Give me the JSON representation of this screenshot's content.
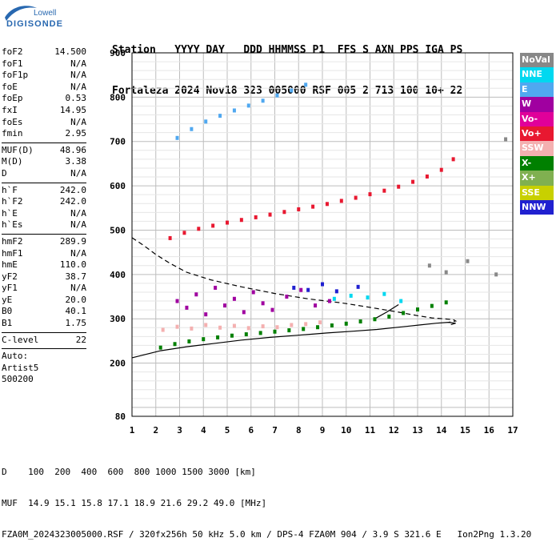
{
  "logo": {
    "line1": "Lowell",
    "line2": "DIGISONDE"
  },
  "header": {
    "labels": "Station   YYYY DAY   DDD HHMMSS P1  FFS S AXN PPS IGA PS",
    "values": "Fortaleza 2024 Nov18 323 005000 RSF 005 2 713 100 10+ 22"
  },
  "params": {
    "group1": [
      {
        "label": "foF2",
        "value": "14.500"
      },
      {
        "label": "foF1",
        "value": "N/A"
      },
      {
        "label": "foF1p",
        "value": "N/A"
      },
      {
        "label": "foE",
        "value": "N/A"
      },
      {
        "label": "foEp",
        "value": "0.53"
      },
      {
        "label": "fxI",
        "value": "14.95"
      },
      {
        "label": "foEs",
        "value": "N/A"
      },
      {
        "label": "fmin",
        "value": "2.95"
      }
    ],
    "group2": [
      {
        "label": "MUF(D)",
        "value": "48.96"
      },
      {
        "label": "M(D)",
        "value": "3.38"
      },
      {
        "label": "D",
        "value": "N/A"
      }
    ],
    "group3": [
      {
        "label": "h`F",
        "value": "242.0"
      },
      {
        "label": "h`F2",
        "value": "242.0"
      },
      {
        "label": "h`E",
        "value": "N/A"
      },
      {
        "label": "h`Es",
        "value": "N/A"
      }
    ],
    "group4": [
      {
        "label": "hmF2",
        "value": "289.9"
      },
      {
        "label": "hmF1",
        "value": "N/A"
      },
      {
        "label": "hmE",
        "value": "110.0"
      },
      {
        "label": "yF2",
        "value": "38.7"
      },
      {
        "label": "yF1",
        "value": "N/A"
      },
      {
        "label": "yE",
        "value": "20.0"
      },
      {
        "label": "B0",
        "value": "40.1"
      },
      {
        "label": "B1",
        "value": "1.75"
      }
    ],
    "group5": [
      {
        "label": "C-level",
        "value": "22"
      }
    ],
    "auto": [
      "Auto:",
      "Artist5",
      "500200"
    ]
  },
  "legend": [
    {
      "label": "NoVal",
      "color": "#888888"
    },
    {
      "label": "NNE",
      "color": "#00d8f0"
    },
    {
      "label": "E",
      "color": "#50a8f0"
    },
    {
      "label": "W",
      "color": "#a000a0"
    },
    {
      "label": "Vo-",
      "color": "#e0009a"
    },
    {
      "label": "Vo+",
      "color": "#e81830"
    },
    {
      "label": "SSW",
      "color": "#f4b0b0"
    },
    {
      "label": "X-",
      "color": "#008000"
    },
    {
      "label": "X+",
      "color": "#80b050"
    },
    {
      "label": "SSE",
      "color": "#c8d000"
    },
    {
      "label": "NNW",
      "color": "#2020d0"
    }
  ],
  "footer": {
    "line1": "D    100  200  400  600  800 1000 1500 3000 [km]",
    "line2": "MUF  14.9 15.1 15.8 17.1 18.9 21.6 29.2 49.0 [MHz]",
    "line3": "FZA0M_2024323005000.RSF / 320fx256h 50 kHz 5.0 km / DPS-4 FZA0M 904 / 3.9 S 321.6 E   Ion2Png 1.3.20"
  },
  "chart_data": {
    "type": "scatter",
    "title": "",
    "xlabel": "",
    "ylabel": "",
    "xlim": [
      1,
      17
    ],
    "ylim": [
      80,
      900
    ],
    "x_ticks": [
      "1",
      "2",
      "3",
      "4",
      "5",
      "6",
      "7",
      "8",
      "9",
      "10",
      "11",
      "12",
      "13",
      "14",
      "15",
      "16",
      "17"
    ],
    "y_ticks": [
      "80",
      "200",
      "300",
      "400",
      "500",
      "600",
      "700",
      "800",
      "900"
    ],
    "grid": true,
    "series": [
      {
        "name": "X-",
        "color": "#008000",
        "x": [
          2.2,
          2.8,
          3.4,
          4.0,
          4.6,
          5.2,
          5.8,
          6.4,
          7.0,
          7.6,
          8.2,
          8.8,
          9.4,
          10.0,
          10.6,
          11.2,
          11.8,
          12.4,
          13.0,
          13.6,
          14.2
        ],
        "y": [
          235,
          243,
          249,
          254,
          258,
          262,
          265,
          268,
          271,
          274,
          277,
          281,
          285,
          289,
          294,
          299,
          305,
          313,
          321,
          329,
          337
        ]
      },
      {
        "name": "Vo+",
        "color": "#e81830",
        "x": [
          2.6,
          3.2,
          3.8,
          4.4,
          5.0,
          5.6,
          6.2,
          6.8,
          7.4,
          8.0,
          8.6,
          9.2,
          9.8,
          10.4,
          11.0,
          11.6,
          12.2,
          12.8,
          13.4,
          14.0,
          14.5
        ],
        "y": [
          482,
          494,
          503,
          510,
          517,
          523,
          529,
          535,
          541,
          547,
          553,
          559,
          566,
          573,
          581,
          589,
          598,
          609,
          621,
          636,
          660
        ]
      },
      {
        "name": "E",
        "color": "#50a8f0",
        "x": [
          2.9,
          3.5,
          4.1,
          4.7,
          5.3,
          5.9,
          6.5,
          7.1,
          7.7,
          8.3
        ],
        "y": [
          708,
          728,
          745,
          758,
          770,
          781,
          792,
          804,
          815,
          828
        ]
      },
      {
        "name": "W",
        "color": "#a000a0",
        "x": [
          2.9,
          3.3,
          3.7,
          4.1,
          4.5,
          4.9,
          5.3,
          5.7,
          6.1,
          6.5,
          6.9,
          7.5,
          8.1,
          8.7,
          9.3
        ],
        "y": [
          340,
          325,
          355,
          310,
          370,
          330,
          345,
          315,
          360,
          335,
          320,
          350,
          365,
          330,
          340
        ]
      },
      {
        "name": "SSW",
        "color": "#f4b0b0",
        "x": [
          2.3,
          2.9,
          3.5,
          4.1,
          4.7,
          5.3,
          5.9,
          6.5,
          7.1,
          7.7,
          8.3,
          8.9
        ],
        "y": [
          275,
          282,
          278,
          286,
          280,
          284,
          279,
          283,
          281,
          286,
          288,
          292
        ]
      },
      {
        "name": "NNE",
        "color": "#00d8f0",
        "x": [
          9.5,
          10.2,
          10.9,
          11.6,
          12.3
        ],
        "y": [
          345,
          352,
          348,
          356,
          340
        ]
      },
      {
        "name": "NNW",
        "color": "#2020d0",
        "x": [
          7.8,
          8.4,
          9.0,
          9.6,
          10.5
        ],
        "y": [
          370,
          365,
          378,
          362,
          372
        ]
      },
      {
        "name": "NoVal",
        "color": "#888888",
        "x": [
          13.5,
          14.2,
          15.1,
          16.3,
          16.7
        ],
        "y": [
          420,
          405,
          430,
          400,
          705
        ]
      }
    ],
    "lines": [
      {
        "name": "profile_dashed",
        "dash": true,
        "x": [
          1.0,
          1.5,
          2.0,
          2.6,
          3.3,
          4.3,
          5.6,
          7.0,
          8.4,
          9.8,
          11.1,
          12.2,
          13.0,
          13.6,
          14.1,
          14.5,
          14.6,
          14.3
        ],
        "y": [
          483,
          465,
          445,
          425,
          405,
          388,
          372,
          357,
          345,
          336,
          325,
          315,
          307,
          302,
          300,
          298,
          295,
          292
        ]
      },
      {
        "name": "profile_solid",
        "dash": false,
        "x": [
          1.0,
          2.2,
          3.3,
          4.4,
          5.6,
          6.8,
          8.0,
          9.2,
          10.3,
          11.3,
          12.2,
          13.1,
          13.8,
          14.3,
          14.6,
          14.4
        ],
        "y": [
          212,
          228,
          237,
          244,
          252,
          258,
          263,
          268,
          272,
          276,
          281,
          286,
          290,
          292,
          290,
          287
        ]
      },
      {
        "name": "virtual_trace",
        "dash": false,
        "x": [
          11.2,
          11.7,
          12.2
        ],
        "y": [
          300,
          315,
          332
        ]
      }
    ]
  }
}
